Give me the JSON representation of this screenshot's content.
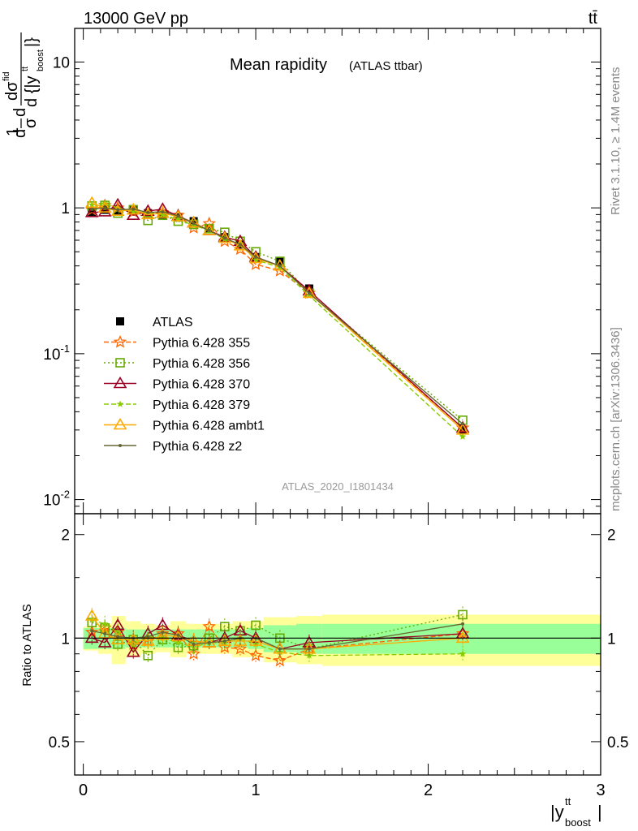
{
  "header": {
    "energy_label": "13000 GeV pp",
    "process_label": "tt̄"
  },
  "side_labels": {
    "rivet": "Rivet 3.1.10, ≥ 1.4M events",
    "mcplots": "mcplots.cern.ch [arXiv:1306.3436]"
  },
  "legend": {
    "data_label": "ATLAS",
    "entries": [
      "Pythia 6.428 355",
      "Pythia 6.428 356",
      "Pythia 6.428 370",
      "Pythia 6.428 379",
      "Pythia 6.428 ambt1",
      "Pythia 6.428 z2"
    ]
  },
  "chart_data": [
    {
      "type": "line",
      "title": "Mean rapidity",
      "subtitle": "(ATLAS ttbar)",
      "watermark": "ATLAS_2020_I1801434",
      "ylabel": "1/σ dσ^fid / d{|y_boost^tt|}",
      "yscale": "log",
      "ylim": [
        0.008,
        17
      ],
      "xlim": [
        -0.05,
        3.0
      ],
      "ytick_labels": [
        "10^-2",
        "10^-1",
        "1",
        "10"
      ],
      "x": [
        0.05,
        0.125,
        0.2,
        0.29,
        0.375,
        0.46,
        0.55,
        0.64,
        0.73,
        0.82,
        0.91,
        1.0,
        1.14,
        1.31,
        2.2
      ],
      "series": [
        {
          "name": "ATLAS",
          "color": "#000000",
          "marker": "square",
          "values": [
            0.93,
            0.97,
            0.96,
            0.98,
            0.92,
            0.9,
            0.86,
            0.81,
            0.72,
            0.63,
            0.56,
            0.46,
            0.43,
            0.28,
            0.03
          ]
        },
        {
          "name": "Pythia 6.428 355",
          "color": "#ff6600",
          "marker": "star",
          "dash": "6,3",
          "values": [
            0.97,
            1.04,
            1.0,
            0.94,
            0.9,
            0.93,
            0.89,
            0.73,
            0.78,
            0.59,
            0.52,
            0.41,
            0.37,
            0.26,
            0.031
          ]
        },
        {
          "name": "Pythia 6.428 356",
          "color": "#66aa00",
          "marker": "open-square",
          "dash": "2,3",
          "values": [
            1.03,
            1.04,
            0.92,
            0.97,
            0.82,
            0.89,
            0.81,
            0.77,
            0.72,
            0.68,
            0.59,
            0.5,
            0.43,
            0.26,
            0.035
          ]
        },
        {
          "name": "Pythia 6.428 370",
          "color": "#990022",
          "marker": "open-triangle",
          "dash": "",
          "values": [
            0.93,
            0.94,
            1.05,
            0.89,
            0.95,
            0.98,
            0.88,
            0.79,
            0.7,
            0.63,
            0.59,
            0.46,
            0.4,
            0.27,
            0.031
          ]
        },
        {
          "name": "Pythia 6.428 379",
          "color": "#88cc00",
          "marker": "small-star",
          "dash": "6,3",
          "values": [
            1.05,
            1.07,
            1.0,
            0.94,
            0.93,
            0.9,
            0.83,
            0.76,
            0.7,
            0.61,
            0.56,
            0.44,
            0.39,
            0.25,
            0.027
          ]
        },
        {
          "name": "Pythia 6.428 ambt1",
          "color": "#ffaa00",
          "marker": "open-triangle",
          "dash": "",
          "values": [
            1.08,
            1.0,
            0.95,
            0.97,
            0.9,
            0.92,
            0.87,
            0.79,
            0.7,
            0.62,
            0.55,
            0.45,
            0.4,
            0.26,
            0.03
          ]
        },
        {
          "name": "Pythia 6.428 z2",
          "color": "#666633",
          "marker": "dot",
          "dash": "",
          "values": [
            0.98,
            1.0,
            0.97,
            0.98,
            0.93,
            0.94,
            0.88,
            0.78,
            0.7,
            0.62,
            0.56,
            0.46,
            0.4,
            0.26,
            0.033
          ]
        }
      ]
    },
    {
      "type": "line",
      "ylabel": "Ratio to ATLAS",
      "xlabel": "|y_boost^tt|",
      "ylim": [
        0.4,
        2.3
      ],
      "xlim": [
        -0.05,
        3.0
      ],
      "ytick_labels": [
        "0.5",
        "1",
        "2"
      ],
      "xtick_labels": [
        "0",
        "1",
        "2",
        "3"
      ],
      "bands": {
        "x_edges": [
          0.0,
          0.085,
          0.165,
          0.245,
          0.335,
          0.415,
          0.505,
          0.595,
          0.685,
          0.775,
          0.865,
          0.955,
          1.045,
          1.235,
          1.385,
          3.0
        ],
        "inner": [
          0.07,
          0.07,
          0.07,
          0.06,
          0.06,
          0.06,
          0.06,
          0.06,
          0.06,
          0.06,
          0.06,
          0.07,
          0.09,
          0.1,
          0.1
        ],
        "outer": [
          0.08,
          0.1,
          0.16,
          0.12,
          0.1,
          0.09,
          0.12,
          0.1,
          0.1,
          0.1,
          0.12,
          0.12,
          0.15,
          0.16,
          0.17
        ],
        "inner_color": "#99ff99",
        "outer_color": "#ffff99"
      },
      "series": [
        {
          "name": "Pythia 6.428 355",
          "values": [
            1.04,
            1.07,
            1.04,
            0.96,
            0.98,
            1.03,
            1.03,
            0.9,
            1.08,
            0.94,
            0.93,
            0.89,
            0.86,
            0.93,
            1.03
          ]
        },
        {
          "name": "Pythia 6.428 356",
          "values": [
            1.11,
            1.07,
            0.96,
            0.99,
            0.89,
            0.99,
            0.94,
            0.95,
            1.0,
            1.08,
            1.05,
            1.09,
            1.0,
            0.93,
            1.17
          ]
        },
        {
          "name": "Pythia 6.428 370",
          "values": [
            1.0,
            0.97,
            1.09,
            0.91,
            1.03,
            1.09,
            1.02,
            0.98,
            0.97,
            1.0,
            1.05,
            1.0,
            0.93,
            0.97,
            1.03
          ]
        },
        {
          "name": "Pythia 6.428 379",
          "values": [
            1.13,
            1.1,
            1.04,
            0.96,
            1.01,
            1.0,
            0.97,
            0.94,
            0.97,
            0.97,
            1.0,
            0.96,
            0.91,
            0.89,
            0.9
          ]
        },
        {
          "name": "Pythia 6.428 ambt1",
          "values": [
            1.16,
            1.03,
            0.99,
            0.99,
            0.98,
            1.02,
            1.01,
            0.98,
            0.97,
            0.98,
            0.98,
            0.98,
            0.93,
            0.93,
            1.0
          ]
        },
        {
          "name": "Pythia 6.428 z2",
          "values": [
            1.05,
            1.03,
            1.01,
            1.0,
            1.01,
            1.04,
            1.02,
            0.96,
            0.97,
            0.98,
            1.0,
            1.0,
            0.93,
            0.93,
            1.1
          ]
        }
      ]
    }
  ]
}
